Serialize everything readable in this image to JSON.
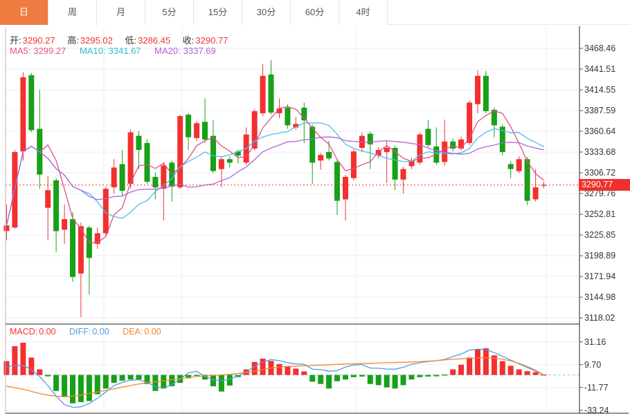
{
  "tabs": [
    {
      "label": "日",
      "name": "tab-day",
      "active": true
    },
    {
      "label": "周",
      "name": "tab-week",
      "active": false
    },
    {
      "label": "月",
      "name": "tab-month",
      "active": false
    },
    {
      "label": "5分",
      "name": "tab-5min",
      "active": false
    },
    {
      "label": "15分",
      "name": "tab-15min",
      "active": false
    },
    {
      "label": "30分",
      "name": "tab-30min",
      "active": false
    },
    {
      "label": "60分",
      "name": "tab-60min",
      "active": false
    },
    {
      "label": "4时",
      "name": "tab-4hour",
      "active": false
    }
  ],
  "quote_bar": {
    "open_label": "开:",
    "open": "3290.27",
    "high_label": "高:",
    "high": "3295.02",
    "low_label": "低:",
    "low": "3286.45",
    "close_label": "收:",
    "close": "3290.77"
  },
  "ma_bar": {
    "ma5_label": "MA5:",
    "ma5_value": "3299.27",
    "ma10_label": "MA10:",
    "ma10_value": "3341.67",
    "ma20_label": "MA20:",
    "ma20_value": "3337.69"
  },
  "macd_bar": {
    "macd_label": "MACD:",
    "macd_value": "0.00",
    "diff_label": "DIFF:",
    "diff_value": "0.00",
    "dea_label": "DEA:",
    "dea_value": "0.00"
  },
  "price_badge": "3290.77",
  "colors": {
    "accent_orange": "#ee7b40",
    "up_red": "#f23030",
    "down_green": "#18a018",
    "badge_red": "#f0302c",
    "ma5_pink": "#e8548c",
    "ma10_cyan": "#33b8d8",
    "ma20_purple": "#af62d5",
    "diff_blue": "#4f9be0",
    "dea_orange": "#f5862d",
    "grid": "#e9eef6"
  },
  "chart_data": [
    {
      "type": "candlestick",
      "panel": "main",
      "convention": "red-up green-down",
      "up_color": "#f23030",
      "down_color": "#18a018",
      "grid_color": "#e9eef6",
      "current_price": 3290.77,
      "current_price_color": "#f0302c",
      "y_ticks": [
        3468.46,
        3441.51,
        3414.55,
        3387.59,
        3360.64,
        3333.68,
        3306.72,
        3279.76,
        3252.81,
        3225.85,
        3198.89,
        3171.94,
        3144.98,
        3118.02
      ],
      "x_gridlines": [
        150,
        263,
        514,
        789
      ],
      "ma_lines": [
        {
          "name": "MA5",
          "period": 5,
          "color": "#e94a85",
          "current": 3299.27
        },
        {
          "name": "MA10",
          "period": 10,
          "color": "#49c2e0",
          "current": 3341.67
        },
        {
          "name": "MA20",
          "period": 20,
          "color": "#b064d8",
          "current": 3337.69
        }
      ],
      "candles_ohlc": [
        [
          3230.9,
          3265.7,
          3219.0,
          3238.2
        ],
        [
          3235.5,
          3336.4,
          3233.6,
          3333.6
        ],
        [
          3334.5,
          3437.3,
          3322.6,
          3430.9
        ],
        [
          3433.6,
          3436.4,
          3359.3,
          3362.1
        ],
        [
          3363.9,
          3414.3,
          3285.9,
          3304.3
        ],
        [
          3261.2,
          3302.4,
          3219.0,
          3284.1
        ],
        [
          3296.9,
          3299.7,
          3203.4,
          3230.9
        ],
        [
          3232.7,
          3265.7,
          3214.4,
          3246.5
        ],
        [
          3246.5,
          3255.7,
          3164.8,
          3171.3
        ],
        [
          3175.8,
          3241.9,
          3119.0,
          3237.3
        ],
        [
          3235.5,
          3238.2,
          3148.3,
          3196.0
        ],
        [
          3214.4,
          3235.5,
          3207.9,
          3228.1
        ],
        [
          3228.1,
          3288.7,
          3225.4,
          3285.9
        ],
        [
          3287.8,
          3324.5,
          3279.5,
          3313.5
        ],
        [
          3318.0,
          3336.4,
          3276.7,
          3283.2
        ],
        [
          3292.3,
          3363.0,
          3285.9,
          3359.3
        ],
        [
          3354.7,
          3361.1,
          3311.6,
          3336.4
        ],
        [
          3345.5,
          3350.1,
          3292.3,
          3295.1
        ],
        [
          3301.5,
          3307.0,
          3272.2,
          3287.8
        ],
        [
          3285.9,
          3320.8,
          3244.6,
          3316.2
        ],
        [
          3319.9,
          3322.6,
          3269.4,
          3288.7
        ],
        [
          3287.8,
          3382.3,
          3285.9,
          3380.4
        ],
        [
          3382.3,
          3384.1,
          3336.4,
          3352.9
        ],
        [
          3351.9,
          3374.0,
          3348.3,
          3371.2
        ],
        [
          3373.0,
          3403.3,
          3345.5,
          3350.1
        ],
        [
          3354.7,
          3374.9,
          3306.1,
          3308.9
        ],
        [
          3311.6,
          3327.2,
          3287.8,
          3324.5
        ],
        [
          3324.5,
          3328.1,
          3313.5,
          3319.9
        ],
        [
          3334.5,
          3337.3,
          3319.0,
          3329.0
        ],
        [
          3319.9,
          3365.7,
          3317.1,
          3356.5
        ],
        [
          3338.2,
          3389.5,
          3335.4,
          3386.8
        ],
        [
          3384.1,
          3448.3,
          3380.4,
          3432.7
        ],
        [
          3434.5,
          3452.9,
          3382.3,
          3385.0
        ],
        [
          3384.1,
          3403.3,
          3377.6,
          3390.5
        ],
        [
          3391.4,
          3396.0,
          3363.9,
          3368.5
        ],
        [
          3365.7,
          3379.5,
          3363.0,
          3370.3
        ],
        [
          3391.4,
          3397.9,
          3345.5,
          3374.9
        ],
        [
          3366.6,
          3369.4,
          3292.3,
          3319.9
        ],
        [
          3322.6,
          3332.7,
          3310.7,
          3329.9
        ],
        [
          3333.6,
          3348.3,
          3322.6,
          3325.4
        ],
        [
          3320.8,
          3323.6,
          3252.0,
          3270.3
        ],
        [
          3272.2,
          3304.3,
          3244.6,
          3301.5
        ],
        [
          3299.7,
          3337.3,
          3296.9,
          3334.5
        ],
        [
          3339.1,
          3359.3,
          3333.6,
          3354.7
        ],
        [
          3357.5,
          3360.2,
          3311.6,
          3343.7
        ],
        [
          3329.0,
          3340.0,
          3325.4,
          3336.4
        ],
        [
          3333.6,
          3348.3,
          3293.2,
          3339.1
        ],
        [
          3339.1,
          3341.9,
          3284.1,
          3297.9
        ],
        [
          3297.9,
          3314.4,
          3279.5,
          3311.6
        ],
        [
          3315.3,
          3326.3,
          3311.6,
          3322.6
        ],
        [
          3319.9,
          3359.3,
          3317.1,
          3356.5
        ],
        [
          3363.9,
          3374.9,
          3340.1,
          3342.8
        ],
        [
          3341.0,
          3365.7,
          3317.1,
          3319.9
        ],
        [
          3320.8,
          3375.8,
          3316.2,
          3347.4
        ],
        [
          3347.4,
          3351.0,
          3334.5,
          3338.2
        ],
        [
          3338.2,
          3353.8,
          3335.4,
          3350.1
        ],
        [
          3345.5,
          3400.6,
          3342.8,
          3397.9
        ],
        [
          3396.0,
          3440.0,
          3384.1,
          3432.7
        ],
        [
          3432.7,
          3439.1,
          3384.1,
          3386.8
        ],
        [
          3388.6,
          3391.4,
          3352.9,
          3368.5
        ],
        [
          3366.6,
          3369.4,
          3329.0,
          3333.6
        ],
        [
          3318.0,
          3321.7,
          3299.7,
          3311.6
        ],
        [
          3308.9,
          3328.1,
          3306.1,
          3324.5
        ],
        [
          3324.5,
          3327.2,
          3264.8,
          3270.3
        ],
        [
          3272.2,
          3311.6,
          3269.4,
          3287.8
        ],
        [
          3290.27,
          3295.02,
          3286.45,
          3290.77
        ]
      ]
    },
    {
      "type": "bar",
      "panel": "macd",
      "up_color": "#f23030",
      "down_color": "#18a018",
      "grid_color": "#e9eef6",
      "zero_line_color": "#90c8f0",
      "diff_color": "#4f9be0",
      "dea_color": "#f5862d",
      "y_ticks": [
        31.16,
        9.7,
        -11.77,
        -33.24
      ],
      "x_gridlines": [
        150,
        263,
        514,
        789
      ],
      "histogram": [
        13.0,
        27.1,
        30.3,
        16.4,
        5.3,
        -1.3,
        -15.0,
        -20.3,
        -26.7,
        -25.6,
        -24.6,
        -18.2,
        -12.8,
        -7.5,
        -5.4,
        -4.3,
        -4.3,
        -8.6,
        -15.0,
        -12.8,
        -10.7,
        -7.5,
        -3.2,
        -1.0,
        -4.3,
        -10.7,
        -15.6,
        -10.0,
        -2.0,
        5.3,
        12.2,
        15.4,
        13.3,
        10.3,
        8.1,
        6.0,
        3.3,
        -6.4,
        -8.5,
        -12.8,
        -5.9,
        -4.3,
        -2.1,
        -1.5,
        -8.5,
        -9.6,
        -11.7,
        -12.8,
        -9.6,
        -4.3,
        -2.1,
        -1.5,
        -1.3,
        -0.9,
        5.3,
        9.6,
        16.4,
        24.1,
        25.2,
        18.5,
        13.0,
        8.6,
        5.3,
        3.6,
        2.6,
        0.0
      ],
      "diff_line": [
        7.5,
        8.8,
        9.0,
        5.0,
        -1.5,
        -10.0,
        -20.0,
        -28.0,
        -30.5,
        -30.0,
        -27.0,
        -22.0,
        -16.0,
        -10.0,
        -7.0,
        -5.0,
        -4.5,
        -7.0,
        -11.0,
        -12.5,
        -9.0,
        -4.0,
        2.0,
        3.5,
        -1.5,
        -4.5,
        -5.5,
        -4.0,
        -1.0,
        3.0,
        8.0,
        12.0,
        14.5,
        13.5,
        11.5,
        10.5,
        10.0,
        5.5,
        5.0,
        3.5,
        4.0,
        7.5,
        9.3,
        9.8,
        6.5,
        6.3,
        5.6,
        5.4,
        7.2,
        10.0,
        11.5,
        12.7,
        13.4,
        14.6,
        17.4,
        19.6,
        23.4,
        24.3,
        24.0,
        21.0,
        17.5,
        14.0,
        10.5,
        7.0,
        3.5,
        0.0
      ],
      "dea_line": [
        -10.5,
        -12.0,
        -13.5,
        -15.5,
        -17.5,
        -19.0,
        -20.0,
        -20.5,
        -20.0,
        -19.0,
        -17.5,
        -16.0,
        -14.5,
        -13.0,
        -11.5,
        -10.0,
        -8.5,
        -7.5,
        -6.5,
        -5.5,
        -4.5,
        -3.5,
        -2.5,
        -1.5,
        -1.0,
        -0.5,
        0.0,
        0.5,
        1.5,
        2.5,
        3.5,
        5.0,
        6.5,
        7.5,
        8.0,
        8.3,
        8.6,
        9.0,
        9.3,
        9.6,
        10.0,
        10.3,
        10.5,
        10.8,
        11.0,
        11.2,
        11.5,
        11.8,
        12.0,
        12.2,
        12.5,
        13.0,
        13.5,
        14.2,
        14.8,
        15.2,
        15.6,
        16.0,
        16.2,
        15.8,
        14.8,
        13.2,
        11.0,
        8.0,
        4.5,
        0.0
      ]
    }
  ]
}
